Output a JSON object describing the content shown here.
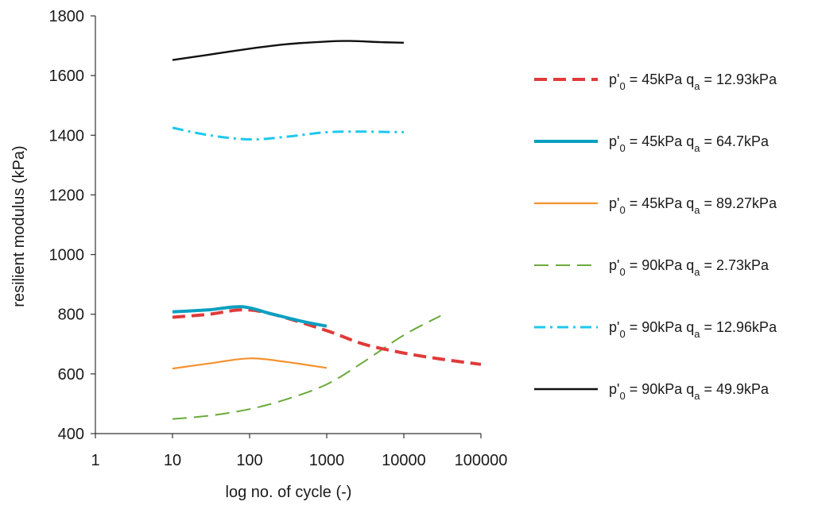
{
  "chart_data": {
    "type": "line",
    "title": "",
    "xlabel": "log no. of cycle (-)",
    "ylabel": "resilient modulus (kPa)",
    "xscale": "log",
    "xlim": [
      1,
      100000
    ],
    "ylim": [
      400,
      1800
    ],
    "x_ticks": [
      1,
      10,
      100,
      1000,
      10000,
      100000
    ],
    "x_tick_labels": [
      "1",
      "10",
      "100",
      "1000",
      "10000",
      "100000"
    ],
    "y_ticks": [
      400,
      600,
      800,
      1000,
      1200,
      1400,
      1600,
      1800
    ],
    "y_tick_labels": [
      "400",
      "600",
      "800",
      "1000",
      "1200",
      "1400",
      "1600",
      "1800"
    ],
    "grid": false,
    "legend_position": "right",
    "series": [
      {
        "name": "p'0 = 45kPa qa = 12.93kPa",
        "legend": {
          "p": "p'",
          "p_sub": "0",
          "mid": " = 45kPa q",
          "q_sub": "a",
          "end": " = 12.93kPa"
        },
        "color": "#e03a3a",
        "style": "dashed-thick",
        "x": [
          10,
          30,
          80,
          200,
          1000,
          3000,
          10000,
          30000,
          100000
        ],
        "y": [
          790,
          800,
          815,
          800,
          745,
          700,
          670,
          650,
          632
        ]
      },
      {
        "name": "p'0 = 45kPa qa = 64.7kPa",
        "legend": {
          "p": "p'",
          "p_sub": "0",
          "mid": " = 45kPa q",
          "q_sub": "a",
          "end": " = 64.7kPa"
        },
        "color": "#0aa0c0",
        "style": "solid-thick",
        "x": [
          10,
          30,
          80,
          200,
          500,
          1000
        ],
        "y": [
          808,
          815,
          825,
          800,
          775,
          760
        ]
      },
      {
        "name": "p'0 = 45kPa qa = 89.27kPa",
        "legend": {
          "p": "p'",
          "p_sub": "0",
          "mid": " = 45kPa q",
          "q_sub": "a",
          "end": " = 89.27kPa"
        },
        "color": "#f5912e",
        "style": "solid-thin",
        "x": [
          10,
          30,
          100,
          300,
          1000
        ],
        "y": [
          618,
          635,
          652,
          640,
          620
        ]
      },
      {
        "name": "p'0 = 90kPa qa = 2.73kPa",
        "legend": {
          "p": "p'",
          "p_sub": "0",
          "mid": " = 90kPa q",
          "q_sub": "a",
          "end": " = 2.73kPa"
        },
        "color": "#6aaa3a",
        "style": "long-dash",
        "x": [
          10,
          30,
          100,
          300,
          1000,
          3000,
          10000,
          30000
        ],
        "y": [
          449,
          460,
          482,
          515,
          565,
          640,
          730,
          795
        ]
      },
      {
        "name": "p'0 = 90kPa qa = 12.96kPa",
        "legend": {
          "p": "p'",
          "p_sub": "0",
          "mid": " = 90kPa q",
          "q_sub": "a",
          "end": " = 12.96kPa"
        },
        "color": "#1ec8ee",
        "style": "dash-dot",
        "x": [
          10,
          30,
          100,
          300,
          1000,
          3000,
          10000
        ],
        "y": [
          1425,
          1400,
          1386,
          1395,
          1410,
          1412,
          1410
        ]
      },
      {
        "name": "p'0 = 90kPa qa = 49.9kPa",
        "legend": {
          "p": "p'",
          "p_sub": "0",
          "mid": " = 90kPa q",
          "q_sub": "a",
          "end": " = 49.9kPa"
        },
        "color": "#111111",
        "style": "solid",
        "x": [
          10,
          30,
          100,
          300,
          1000,
          2000,
          5000,
          10000
        ],
        "y": [
          1652,
          1670,
          1690,
          1705,
          1714,
          1716,
          1712,
          1710
        ]
      }
    ]
  }
}
